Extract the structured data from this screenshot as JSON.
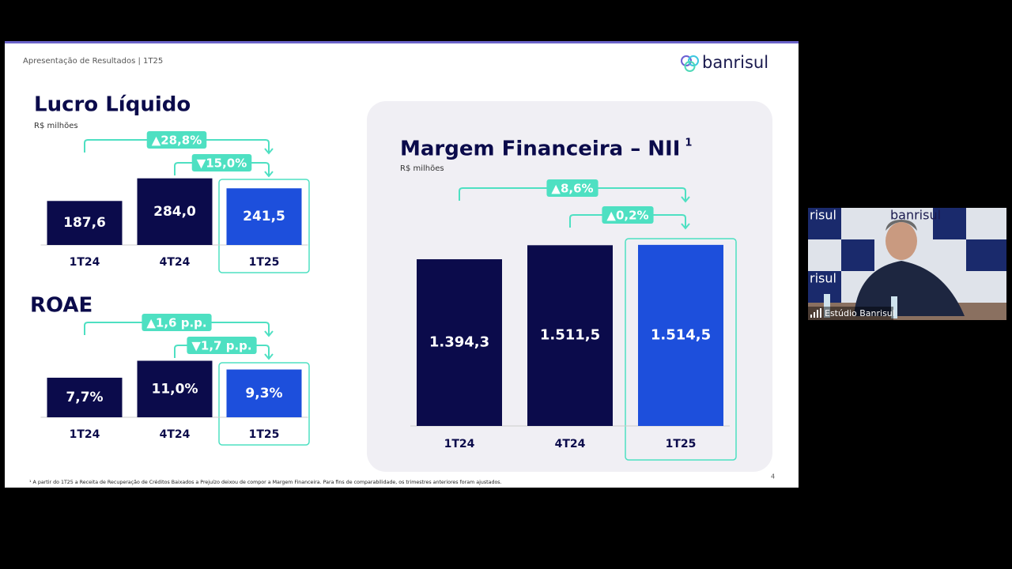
{
  "slide": {
    "header": "Apresentação de Resultados | 1T25",
    "logo": "banrisul",
    "page_number": "4",
    "footnote": "¹ A partir do 1T25 a Receita de Recuperação de Créditos Baixados a Prejuízo deixou de compor a Margem Financeira. Para fins de comparabilidade, os trimestres anteriores foram ajustados."
  },
  "chart_data": [
    {
      "type": "bar",
      "title": "Lucro Líquido",
      "subtitle": "R$ milhões",
      "categories": [
        "1T24",
        "4T24",
        "1T25"
      ],
      "values": [
        187.6,
        284.0,
        241.5
      ],
      "value_labels": [
        "187,6",
        "284,0",
        "241,5"
      ],
      "colors": [
        "#0b0b4b",
        "#0b0b4b",
        "#1d4fdc"
      ],
      "annotations": [
        "▲28,8%",
        "▼15,0%"
      ]
    },
    {
      "type": "bar",
      "title": "ROAE",
      "categories": [
        "1T24",
        "4T24",
        "1T25"
      ],
      "values": [
        7.7,
        11.0,
        9.3
      ],
      "value_labels": [
        "7,7%",
        "11,0%",
        "9,3%"
      ],
      "colors": [
        "#0b0b4b",
        "#0b0b4b",
        "#1d4fdc"
      ],
      "annotations": [
        "▲1,6 p.p.",
        "▼1,7 p.p."
      ]
    },
    {
      "type": "bar",
      "title": "Margem Financeira – NII",
      "title_note": "1",
      "subtitle": "R$ milhões",
      "categories": [
        "1T24",
        "4T24",
        "1T25"
      ],
      "values": [
        1394.3,
        1511.5,
        1514.5
      ],
      "value_labels": [
        "1.394,3",
        "1.511,5",
        "1.514,5"
      ],
      "colors": [
        "#0b0b4b",
        "#0b0b4b",
        "#1d4fdc"
      ],
      "annotations": [
        "▲8,6%",
        "▲0,2%"
      ]
    }
  ],
  "video": {
    "logo": "banrisul",
    "side_text": "risul",
    "participant": "Estúdio Banrisul"
  }
}
